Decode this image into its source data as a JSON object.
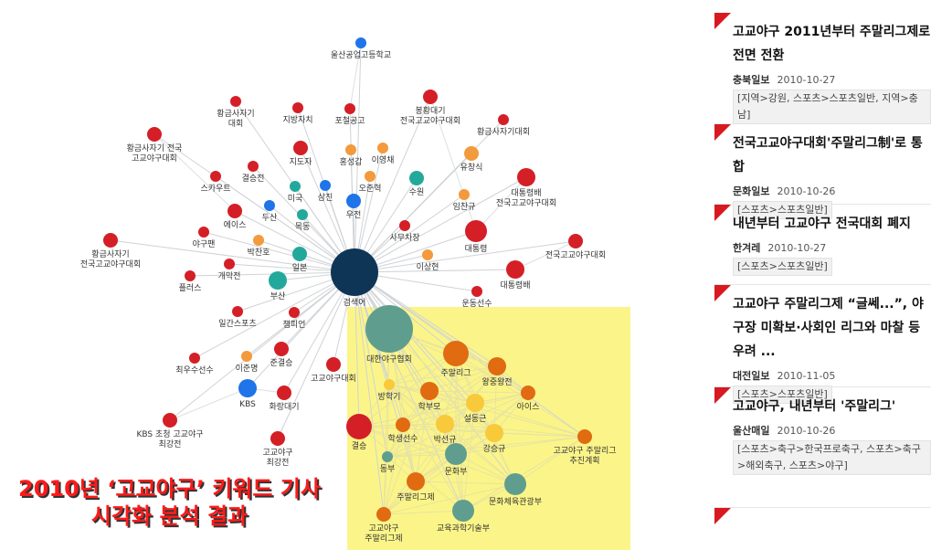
{
  "caption": {
    "line1": "2010년 ‘고교야구’ 키워드 기사",
    "line2": "시각화 분석 결과"
  },
  "network": {
    "colors": {
      "red": "#d41f26",
      "blue": "#1e74e8",
      "teal": "#23a99b",
      "orange": "#f39a3c",
      "dark_orange": "#e06b10",
      "yellow": "#f8c93a",
      "navy": "#0f3556",
      "gray_teal": "#5f9e8f",
      "highlight": "#fbf589"
    },
    "center_label": "검색어",
    "nodes": [
      {
        "id": "ulsan",
        "label": "울산공업고등학교",
        "color": "blue"
      },
      {
        "id": "hwanggeum1",
        "label": "황금사자기|대회",
        "color": "red"
      },
      {
        "id": "jibang",
        "label": "지방자치",
        "color": "red"
      },
      {
        "id": "pocheol",
        "label": "포철공고",
        "color": "red"
      },
      {
        "id": "bonghwang",
        "label": "봉황대기|전국고교야구대회",
        "color": "red"
      },
      {
        "id": "hwanggeum2",
        "label": "황금사자기대회",
        "color": "red"
      },
      {
        "id": "hwanggeum3",
        "label": "황금사자기 전국|고교야구대회",
        "color": "red"
      },
      {
        "id": "jidoja",
        "label": "지도자",
        "color": "red"
      },
      {
        "id": "hongseong",
        "label": "홍성갑",
        "color": "orange"
      },
      {
        "id": "iyeongchae",
        "label": "이영채",
        "color": "orange"
      },
      {
        "id": "yuchangsik",
        "label": "유창식",
        "color": "orange"
      },
      {
        "id": "gyeolseung",
        "label": "결승전",
        "color": "red"
      },
      {
        "id": "scout",
        "label": "스카우트",
        "color": "red"
      },
      {
        "id": "miguk",
        "label": "미국",
        "color": "teal"
      },
      {
        "id": "samjin",
        "label": "삼진",
        "color": "blue"
      },
      {
        "id": "ojeonhyeok",
        "label": "오준혁",
        "color": "orange"
      },
      {
        "id": "suwon",
        "label": "수원",
        "color": "teal"
      },
      {
        "id": "daetongryeongbae2",
        "label": "대통령배|전국고교야구대회",
        "color": "red"
      },
      {
        "id": "dusan",
        "label": "두산",
        "color": "blue"
      },
      {
        "id": "mokdong",
        "label": "목동",
        "color": "teal"
      },
      {
        "id": "ujeon",
        "label": "우전",
        "color": "blue"
      },
      {
        "id": "imchangyu",
        "label": "임찬규",
        "color": "orange"
      },
      {
        "id": "ace",
        "label": "에이스",
        "color": "red"
      },
      {
        "id": "yagupaen",
        "label": "야구팬",
        "color": "red"
      },
      {
        "id": "bakchanho",
        "label": "박찬호",
        "color": "orange"
      },
      {
        "id": "samuchajang",
        "label": "사무차장",
        "color": "red"
      },
      {
        "id": "daetongryeong",
        "label": "대통령",
        "color": "red"
      },
      {
        "id": "hwanggeum4",
        "label": "황금사자기|전국고교야구대회",
        "color": "red"
      },
      {
        "id": "jeonguk",
        "label": "전국고교야구대회",
        "color": "red"
      },
      {
        "id": "gaemakjeon",
        "label": "개막전",
        "color": "red"
      },
      {
        "id": "ilbon",
        "label": "일본",
        "color": "teal"
      },
      {
        "id": "isanghyeon",
        "label": "이상현",
        "color": "orange"
      },
      {
        "id": "daetongryeongbae",
        "label": "대통령배",
        "color": "red"
      },
      {
        "id": "plus",
        "label": "플러스",
        "color": "red"
      },
      {
        "id": "busan",
        "label": "부산",
        "color": "teal"
      },
      {
        "id": "undongseonsu",
        "label": "운동선수",
        "color": "red"
      },
      {
        "id": "ilgan",
        "label": "일간스포츠",
        "color": "red"
      },
      {
        "id": "champion",
        "label": "챔피언",
        "color": "red"
      },
      {
        "id": "daehan",
        "label": "대한야구협회",
        "color": "gray_teal"
      },
      {
        "id": "jumalliga",
        "label": "주말리그",
        "color": "dark_orange"
      },
      {
        "id": "wangjung",
        "label": "왕중왕전",
        "color": "dark_orange"
      },
      {
        "id": "ijunmyeong",
        "label": "이준명",
        "color": "orange"
      },
      {
        "id": "jungyeolseung",
        "label": "준결승",
        "color": "red"
      },
      {
        "id": "gogyoyagudaehoe",
        "label": "고교야구대회",
        "color": "red"
      },
      {
        "id": "choeusu",
        "label": "최우수선수",
        "color": "red"
      },
      {
        "id": "banghakgi",
        "label": "방학기",
        "color": "yellow"
      },
      {
        "id": "hakbumo",
        "label": "학부모",
        "color": "dark_orange"
      },
      {
        "id": "seoldonggeun",
        "label": "설동근",
        "color": "yellow"
      },
      {
        "id": "ice",
        "label": "아이스",
        "color": "dark_orange"
      },
      {
        "id": "kbs",
        "label": "KBS",
        "color": "blue"
      },
      {
        "id": "hwarang",
        "label": "화랑대기",
        "color": "red"
      },
      {
        "id": "gyeolsungyo",
        "label": "결승",
        "color": "red"
      },
      {
        "id": "hakseng",
        "label": "학생선수",
        "color": "dark_orange"
      },
      {
        "id": "baksungyu",
        "label": "박선규",
        "color": "yellow"
      },
      {
        "id": "gangseunggyu",
        "label": "강승규",
        "color": "yellow"
      },
      {
        "id": "kbschojeong",
        "label": "KBS 초청 고교야구|최강전",
        "color": "red"
      },
      {
        "id": "gogyoyagu_choegang",
        "label": "고교야구|최강전",
        "color": "red"
      },
      {
        "id": "gogyoyagu_jumal_chujin",
        "label": "고교야구 주말리그|추진계획",
        "color": "dark_orange"
      },
      {
        "id": "dongbu",
        "label": "동부",
        "color": "gray_teal"
      },
      {
        "id": "munhwabu",
        "label": "문화부",
        "color": "gray_teal"
      },
      {
        "id": "jumalligeje",
        "label": "주말리그제",
        "color": "dark_orange"
      },
      {
        "id": "munhwache",
        "label": "문화체육관광부",
        "color": "gray_teal"
      },
      {
        "id": "gogyo_jumalligeje",
        "label": "고교야구|주말리그제",
        "color": "dark_orange"
      },
      {
        "id": "gyoyuk",
        "label": "교육과학기술부",
        "color": "gray_teal"
      }
    ]
  },
  "news": [
    {
      "title": "고교야구 2011년부터 주말리그제로 전면 전환",
      "source": "충북일보",
      "date": "2010-10-27",
      "tags": "[지역>강원, 스포츠>스포츠일반, 지역>충남]"
    },
    {
      "title": "전국고교야구대회'주말리그制'로 통합",
      "source": "문화일보",
      "date": "2010-10-26",
      "tags": "[스포츠>스포츠일반]"
    },
    {
      "title": "내년부터 고교야구 전국대회 폐지",
      "source": "한겨레",
      "date": "2010-10-27",
      "tags": "[스포츠>스포츠일반]"
    },
    {
      "title": "고교야구 주말리그제 “글쎄...”, 야구장 미확보·사회인 리그와 마찰 등 우려 ...",
      "source": "대전일보",
      "date": "2010-11-05",
      "tags": "[스포츠>스포츠일반]"
    },
    {
      "title": "고교야구, 내년부터 '주말리그'",
      "source": "울산매일",
      "date": "2010-10-26",
      "tags": "[스포츠>축구>한국프로축구, 스포츠>축구>해외축구, 스포츠>야구]"
    }
  ]
}
